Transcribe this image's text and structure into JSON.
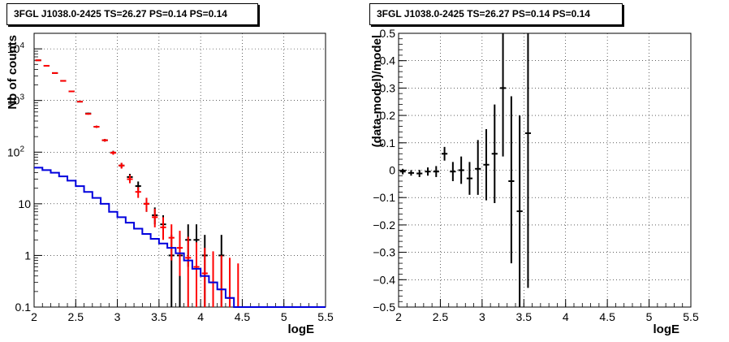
{
  "chart_data": [
    {
      "type": "step-histogram",
      "title": "3FGL J1038.0-2425 TS=26.27 PS=0.14 PS=0.14",
      "xlabel": "logE",
      "ylabel": "Nb of counts",
      "xlim": [
        2,
        5.5
      ],
      "ylim": [
        0.1,
        20000
      ],
      "yscale": "log",
      "grid": true,
      "xticks": [
        "2",
        "2.5",
        "3",
        "3.5",
        "4",
        "4.5",
        "5",
        "5.5"
      ],
      "yticks": [
        "0.1",
        "1",
        "10",
        "10^2",
        "10^3",
        "10^4"
      ],
      "series": [
        {
          "color": "#000000",
          "style": "errorbar",
          "points": [
            {
              "x": 2.05,
              "y": 6000,
              "lo": 5900,
              "hi": 6100
            },
            {
              "x": 2.15,
              "y": 4700,
              "lo": 4600,
              "hi": 4800
            },
            {
              "x": 2.25,
              "y": 3400,
              "lo": 3300,
              "hi": 3500
            },
            {
              "x": 2.35,
              "y": 2400,
              "lo": 2350,
              "hi": 2450
            },
            {
              "x": 2.45,
              "y": 1500,
              "lo": 1460,
              "hi": 1540
            },
            {
              "x": 2.55,
              "y": 950,
              "lo": 920,
              "hi": 980
            },
            {
              "x": 2.65,
              "y": 560,
              "lo": 540,
              "hi": 580
            },
            {
              "x": 2.75,
              "y": 310,
              "lo": 295,
              "hi": 325
            },
            {
              "x": 2.85,
              "y": 170,
              "lo": 160,
              "hi": 180
            },
            {
              "x": 2.95,
              "y": 98,
              "lo": 90,
              "hi": 106
            },
            {
              "x": 3.05,
              "y": 55,
              "lo": 49,
              "hi": 62
            },
            {
              "x": 3.15,
              "y": 33,
              "lo": 28,
              "hi": 38
            },
            {
              "x": 3.25,
              "y": 22,
              "lo": 18,
              "hi": 27
            },
            {
              "x": 3.35,
              "y": 10,
              "lo": 7,
              "hi": 13
            },
            {
              "x": 3.45,
              "y": 6,
              "lo": 4,
              "hi": 8.5
            },
            {
              "x": 3.55,
              "y": 4,
              "lo": 2.5,
              "hi": 6
            },
            {
              "x": 3.65,
              "y": 1,
              "lo": 0.1,
              "hi": 2.5
            },
            {
              "x": 3.75,
              "y": 1,
              "lo": 0.1,
              "hi": 2.5
            },
            {
              "x": 3.85,
              "y": 2,
              "lo": 0.6,
              "hi": 4
            },
            {
              "x": 3.95,
              "y": 2,
              "lo": 0.6,
              "hi": 4
            },
            {
              "x": 4.05,
              "y": 1,
              "lo": 0.1,
              "hi": 2.5
            },
            {
              "x": 4.25,
              "y": 1,
              "lo": 0.1,
              "hi": 2.5
            }
          ]
        },
        {
          "color": "#ff0000",
          "style": "errorbar",
          "points": [
            {
              "x": 2.05,
              "y": 6000,
              "lo": 5850,
              "hi": 6150
            },
            {
              "x": 2.15,
              "y": 4700,
              "lo": 4580,
              "hi": 4820
            },
            {
              "x": 2.25,
              "y": 3400,
              "lo": 3300,
              "hi": 3500
            },
            {
              "x": 2.35,
              "y": 2400,
              "lo": 2340,
              "hi": 2460
            },
            {
              "x": 2.45,
              "y": 1500,
              "lo": 1460,
              "hi": 1540
            },
            {
              "x": 2.55,
              "y": 950,
              "lo": 920,
              "hi": 980
            },
            {
              "x": 2.65,
              "y": 550,
              "lo": 530,
              "hi": 570
            },
            {
              "x": 2.75,
              "y": 310,
              "lo": 295,
              "hi": 325
            },
            {
              "x": 2.85,
              "y": 170,
              "lo": 160,
              "hi": 180
            },
            {
              "x": 2.95,
              "y": 97,
              "lo": 89,
              "hi": 105
            },
            {
              "x": 3.05,
              "y": 55,
              "lo": 48,
              "hi": 62
            },
            {
              "x": 3.15,
              "y": 30,
              "lo": 25,
              "hi": 36
            },
            {
              "x": 3.25,
              "y": 17,
              "lo": 13,
              "hi": 21
            },
            {
              "x": 3.35,
              "y": 10,
              "lo": 7,
              "hi": 13
            },
            {
              "x": 3.45,
              "y": 5.5,
              "lo": 3.5,
              "hi": 8
            },
            {
              "x": 3.55,
              "y": 3.5,
              "lo": 2,
              "hi": 5.5
            },
            {
              "x": 3.65,
              "y": 2.2,
              "lo": 0.8,
              "hi": 4
            },
            {
              "x": 3.75,
              "y": 1.4,
              "lo": 0.4,
              "hi": 3
            },
            {
              "x": 3.85,
              "y": 0.9,
              "lo": 0.1,
              "hi": 2.3
            },
            {
              "x": 3.95,
              "y": 0.6,
              "lo": 0.1,
              "hi": 1.8
            },
            {
              "x": 4.05,
              "y": 0.45,
              "lo": 0.1,
              "hi": 1.4
            },
            {
              "x": 4.15,
              "y": 0.3,
              "lo": 0.1,
              "hi": 1.2
            },
            {
              "x": 4.25,
              "y": 0.22,
              "lo": 0.1,
              "hi": 1.0
            },
            {
              "x": 4.35,
              "y": 0.15,
              "lo": 0.1,
              "hi": 0.9
            },
            {
              "x": 4.45,
              "y": 0.1,
              "lo": 0.1,
              "hi": 0.7
            }
          ]
        },
        {
          "color": "#0000dd",
          "style": "step",
          "edges": [
            2.0,
            2.1,
            2.2,
            2.3,
            2.4,
            2.5,
            2.6,
            2.7,
            2.8,
            2.9,
            3.0,
            3.1,
            3.2,
            3.3,
            3.4,
            3.5,
            3.6,
            3.7,
            3.8,
            3.9,
            4.0,
            4.1,
            4.2,
            4.3,
            4.4,
            4.5,
            5.5
          ],
          "values": [
            50,
            45,
            40,
            34,
            28,
            22,
            17,
            13,
            10,
            7,
            5.5,
            4.3,
            3.3,
            2.6,
            2.1,
            1.7,
            1.4,
            1.1,
            0.8,
            0.55,
            0.4,
            0.3,
            0.22,
            0.15,
            0.1,
            0.1
          ]
        }
      ]
    },
    {
      "type": "errorbar",
      "title": "3FGL J1038.0-2425 TS=26.27 PS=0.14 PS=0.14",
      "xlabel": "logE",
      "ylabel": "(data-model)/model",
      "xlim": [
        2,
        5.5
      ],
      "ylim": [
        -0.5,
        0.5
      ],
      "grid": true,
      "xticks": [
        "2",
        "2.5",
        "3",
        "3.5",
        "4",
        "4.5",
        "5",
        "5.5"
      ],
      "yticks": [
        "−0.5",
        "−0.4",
        "−0.3",
        "−0.2",
        "−0.1",
        "0",
        "0.1",
        "0.2",
        "0.3",
        "0.4",
        "0.5"
      ],
      "series": [
        {
          "color": "#000000",
          "points": [
            {
              "x": 2.05,
              "y": -0.005,
              "lo": -0.015,
              "hi": 0.005
            },
            {
              "x": 2.15,
              "y": -0.01,
              "lo": -0.02,
              "hi": 0.0
            },
            {
              "x": 2.25,
              "y": -0.012,
              "lo": -0.025,
              "hi": 0.001
            },
            {
              "x": 2.35,
              "y": -0.005,
              "lo": -0.02,
              "hi": 0.01
            },
            {
              "x": 2.45,
              "y": -0.005,
              "lo": -0.025,
              "hi": 0.015
            },
            {
              "x": 2.55,
              "y": 0.06,
              "lo": 0.035,
              "hi": 0.085
            },
            {
              "x": 2.65,
              "y": -0.005,
              "lo": -0.04,
              "hi": 0.03
            },
            {
              "x": 2.75,
              "y": 0.0,
              "lo": -0.05,
              "hi": 0.05
            },
            {
              "x": 2.85,
              "y": -0.03,
              "lo": -0.09,
              "hi": 0.03
            },
            {
              "x": 2.95,
              "y": 0.005,
              "lo": -0.09,
              "hi": 0.11
            },
            {
              "x": 3.05,
              "y": 0.02,
              "lo": -0.11,
              "hi": 0.15
            },
            {
              "x": 3.15,
              "y": 0.06,
              "lo": -0.12,
              "hi": 0.24
            },
            {
              "x": 3.25,
              "y": 0.3,
              "lo": 0.05,
              "hi": 0.5
            },
            {
              "x": 3.35,
              "y": -0.04,
              "lo": -0.34,
              "hi": 0.27
            },
            {
              "x": 3.45,
              "y": -0.15,
              "lo": -0.5,
              "hi": 0.2
            },
            {
              "x": 3.55,
              "y": 0.135,
              "lo": -0.43,
              "hi": 0.5
            }
          ]
        }
      ]
    }
  ]
}
